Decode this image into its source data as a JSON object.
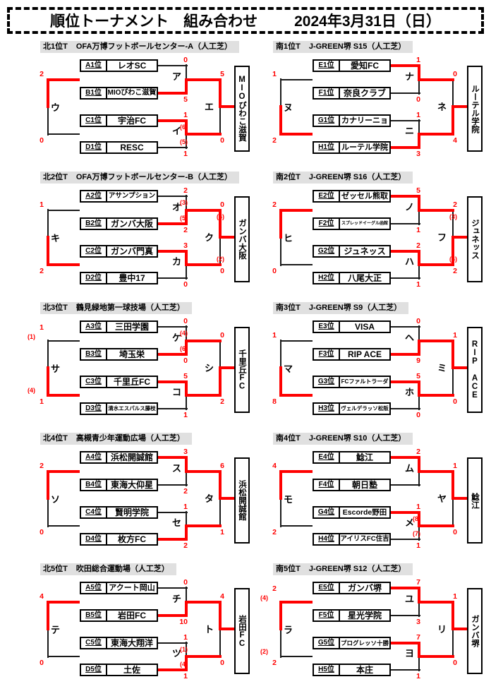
{
  "page": {
    "title": "順位トーナメント　組み合わせ",
    "date": "2024年3月31日（日）"
  },
  "colors": {
    "accent_red": "#ff0000",
    "line_black": "#1a1a1a",
    "header_bg": "#e0e0e0"
  },
  "brackets": [
    {
      "id": "north-1",
      "name": "北1位T",
      "venue": "OFA万博フットボールセンター-A（人工芝）",
      "teams": [
        {
          "seed": "A1位",
          "name": "レオSC"
        },
        {
          "seed": "B1位",
          "name": "MIOびわこ滋賀"
        },
        {
          "seed": "C1位",
          "name": "宇治FC"
        },
        {
          "seed": "D1位",
          "name": "RESC"
        }
      ],
      "matches": {
        "semi_top": {
          "label": "ア",
          "top_score": "0",
          "top_pk": "",
          "bottom_score": "5",
          "bottom_pk": "",
          "winner": "bottom"
        },
        "semi_bottom": {
          "label": "イ",
          "top_score": "1",
          "top_pk": "(6)",
          "bottom_score": "1",
          "bottom_pk": "(5)",
          "winner": "top"
        },
        "consolation": {
          "label": "ウ",
          "top_score": "2",
          "top_pk": "",
          "bottom_score": "0",
          "bottom_pk": "",
          "winner": "top"
        },
        "final": {
          "label": "エ",
          "top_score": "5",
          "top_pk": "",
          "bottom_score": "0",
          "bottom_pk": "",
          "winner": "top"
        }
      },
      "champion": "MIOびわこ滋賀"
    },
    {
      "id": "north-2",
      "name": "北2位T",
      "venue": "OFA万博フットボールセンター-B（人工芝）",
      "teams": [
        {
          "seed": "A2位",
          "name": "アサンプション"
        },
        {
          "seed": "B2位",
          "name": "ガンバ大阪"
        },
        {
          "seed": "C2位",
          "name": "ガンバ門真"
        },
        {
          "seed": "D2位",
          "name": "豊中17"
        }
      ],
      "matches": {
        "semi_top": {
          "label": "オ",
          "top_score": "2",
          "top_pk": "(3)",
          "bottom_score": "2",
          "bottom_pk": "(5)",
          "winner": "bottom"
        },
        "semi_bottom": {
          "label": "カ",
          "top_score": "3",
          "top_pk": "",
          "bottom_score": "0",
          "bottom_pk": "",
          "winner": "top"
        },
        "consolation": {
          "label": "キ",
          "top_score": "1",
          "top_pk": "",
          "bottom_score": "2",
          "bottom_pk": "",
          "winner": "bottom"
        },
        "final": {
          "label": "ク",
          "top_score": "0",
          "top_pk": "(4)",
          "bottom_score": "0",
          "bottom_pk": "(2)",
          "winner": "top"
        }
      },
      "champion": "ガンバ大阪"
    },
    {
      "id": "north-3",
      "name": "北3位T",
      "venue": "鶴見緑地第一球技場（人工芝）",
      "teams": [
        {
          "seed": "A3位",
          "name": "三田学園"
        },
        {
          "seed": "B3位",
          "name": "埼玉栄"
        },
        {
          "seed": "C3位",
          "name": "千里丘FC"
        },
        {
          "seed": "D3位",
          "name": "清水エスパルス藤枝"
        }
      ],
      "matches": {
        "semi_top": {
          "label": "ケ",
          "top_score": "0",
          "top_pk": "(4)",
          "bottom_score": "0",
          "bottom_pk": "(6)",
          "winner": "bottom"
        },
        "semi_bottom": {
          "label": "コ",
          "top_score": "5",
          "top_pk": "",
          "bottom_score": "1",
          "bottom_pk": "",
          "winner": "top"
        },
        "consolation": {
          "label": "サ",
          "top_score": "1",
          "top_pk": "(1)",
          "bottom_score": "1",
          "bottom_pk": "(4)",
          "winner": "bottom"
        },
        "final": {
          "label": "シ",
          "top_score": "0",
          "top_pk": "",
          "bottom_score": "2",
          "bottom_pk": "",
          "winner": "bottom"
        }
      },
      "champion": "千里丘FC"
    },
    {
      "id": "north-4",
      "name": "北4位T",
      "venue": "高槻青少年運動広場（人工芝）",
      "teams": [
        {
          "seed": "A4位",
          "name": "浜松開誠館"
        },
        {
          "seed": "B4位",
          "name": "東海大仰星"
        },
        {
          "seed": "C4位",
          "name": "賢明学院"
        },
        {
          "seed": "D4位",
          "name": "枚方FC"
        }
      ],
      "matches": {
        "semi_top": {
          "label": "ス",
          "top_score": "3",
          "top_pk": "",
          "bottom_score": "2",
          "bottom_pk": "",
          "winner": "top"
        },
        "semi_bottom": {
          "label": "セ",
          "top_score": "1",
          "top_pk": "",
          "bottom_score": "2",
          "bottom_pk": "",
          "winner": "bottom"
        },
        "consolation": {
          "label": "ソ",
          "top_score": "2",
          "top_pk": "",
          "bottom_score": "0",
          "bottom_pk": "",
          "winner": "top"
        },
        "final": {
          "label": "タ",
          "top_score": "6",
          "top_pk": "",
          "bottom_score": "1",
          "bottom_pk": "",
          "winner": "top"
        }
      },
      "champion": "浜松開誠館"
    },
    {
      "id": "north-5",
      "name": "北5位T",
      "venue": "吹田総合運動場（人工芝）",
      "teams": [
        {
          "seed": "A5位",
          "name": "アクート岡山"
        },
        {
          "seed": "B5位",
          "name": "岩田FC"
        },
        {
          "seed": "C5位",
          "name": "東海大翔洋"
        },
        {
          "seed": "D5位",
          "name": "土佐"
        }
      ],
      "matches": {
        "semi_top": {
          "label": "チ",
          "top_score": "0",
          "top_pk": "",
          "bottom_score": "10",
          "bottom_pk": "",
          "winner": "bottom"
        },
        "semi_bottom": {
          "label": "ツ",
          "top_score": "1",
          "top_pk": "(1)",
          "bottom_score": "1",
          "bottom_pk": "(4)",
          "winner": "bottom"
        },
        "consolation": {
          "label": "テ",
          "top_score": "4",
          "top_pk": "",
          "bottom_score": "0",
          "bottom_pk": "",
          "winner": "top"
        },
        "final": {
          "label": "ト",
          "top_score": "4",
          "top_pk": "",
          "bottom_score": "0",
          "bottom_pk": "",
          "winner": "top"
        }
      },
      "champion": "岩田FC"
    },
    {
      "id": "south-1",
      "name": "南1位T",
      "venue": "J-GREEN堺 S15（人工芝）",
      "teams": [
        {
          "seed": "E1位",
          "name": "愛知FC"
        },
        {
          "seed": "F1位",
          "name": "奈良クラブ"
        },
        {
          "seed": "G1位",
          "name": "カナリーニョ"
        },
        {
          "seed": "H1位",
          "name": "ルーテル学院"
        }
      ],
      "matches": {
        "semi_top": {
          "label": "ナ",
          "top_score": "1",
          "top_pk": "",
          "bottom_score": "0",
          "bottom_pk": "",
          "winner": "top"
        },
        "semi_bottom": {
          "label": "ニ",
          "top_score": "1",
          "top_pk": "",
          "bottom_score": "3",
          "bottom_pk": "",
          "winner": "bottom"
        },
        "consolation": {
          "label": "ヌ",
          "top_score": "1",
          "top_pk": "",
          "bottom_score": "2",
          "bottom_pk": "",
          "winner": "bottom"
        },
        "final": {
          "label": "ネ",
          "top_score": "0",
          "top_pk": "",
          "bottom_score": "4",
          "bottom_pk": "",
          "winner": "bottom"
        }
      },
      "champion": "ルーテル学院"
    },
    {
      "id": "south-2",
      "name": "南2位T",
      "venue": "J-GREEN堺 S16（人工芝）",
      "teams": [
        {
          "seed": "E2位",
          "name": "ゼッセル熊取"
        },
        {
          "seed": "F2位",
          "name": "スプレッドイーグル函館"
        },
        {
          "seed": "G2位",
          "name": "ジュネッス"
        },
        {
          "seed": "H2位",
          "name": "八尾大正"
        }
      ],
      "matches": {
        "semi_top": {
          "label": "ノ",
          "top_score": "5",
          "top_pk": "",
          "bottom_score": "1",
          "bottom_pk": "",
          "winner": "top"
        },
        "semi_bottom": {
          "label": "ハ",
          "top_score": "2",
          "top_pk": "",
          "bottom_score": "1",
          "bottom_pk": "",
          "winner": "top"
        },
        "consolation": {
          "label": "ヒ",
          "top_score": "2",
          "top_pk": "",
          "bottom_score": "0",
          "bottom_pk": "",
          "winner": "top"
        },
        "final": {
          "label": "フ",
          "top_score": "2",
          "top_pk": "(3)",
          "bottom_score": "2",
          "bottom_pk": "(4)",
          "winner": "bottom"
        }
      },
      "champion": "ジュネッス"
    },
    {
      "id": "south-3",
      "name": "南3位T",
      "venue": "J-GREEN堺 S9（人工芝）",
      "teams": [
        {
          "seed": "E3位",
          "name": "VISA"
        },
        {
          "seed": "F3位",
          "name": "RIP ACE"
        },
        {
          "seed": "G3位",
          "name": "FCファルトラーダ"
        },
        {
          "seed": "H3位",
          "name": "ヴェルデラッソ松阪"
        }
      ],
      "matches": {
        "semi_top": {
          "label": "ヘ",
          "top_score": "0",
          "top_pk": "",
          "bottom_score": "9",
          "bottom_pk": "",
          "winner": "bottom"
        },
        "semi_bottom": {
          "label": "ホ",
          "top_score": "5",
          "top_pk": "",
          "bottom_score": "0",
          "bottom_pk": "",
          "winner": "top"
        },
        "consolation": {
          "label": "マ",
          "top_score": "1",
          "top_pk": "",
          "bottom_score": "8",
          "bottom_pk": "",
          "winner": "bottom"
        },
        "final": {
          "label": "ミ",
          "top_score": "1",
          "top_pk": "",
          "bottom_score": "0",
          "bottom_pk": "",
          "winner": "top"
        }
      },
      "champion": "RIP ACE"
    },
    {
      "id": "south-4",
      "name": "南4位T",
      "venue": "J-GREEN堺 S10（人工芝）",
      "teams": [
        {
          "seed": "E4位",
          "name": "鯰江"
        },
        {
          "seed": "F4位",
          "name": "朝日塾"
        },
        {
          "seed": "G4位",
          "name": "Escorde野田"
        },
        {
          "seed": "H4位",
          "name": "アイリスFC住吉"
        }
      ],
      "matches": {
        "semi_top": {
          "label": "ム",
          "top_score": "2",
          "top_pk": "",
          "bottom_score": "",
          "bottom_pk": "",
          "winner": "top"
        },
        "semi_bottom": {
          "label": "メ",
          "top_score": "1",
          "top_pk": "(8)",
          "bottom_score": "1",
          "bottom_pk": "(7)",
          "winner": "top"
        },
        "consolation": {
          "label": "モ",
          "top_score": "4",
          "top_pk": "",
          "bottom_score": "2",
          "bottom_pk": "",
          "winner": "top"
        },
        "final": {
          "label": "ヤ",
          "top_score": "1",
          "top_pk": "",
          "bottom_score": "0",
          "bottom_pk": "",
          "winner": "top"
        }
      },
      "champion": "鯰江"
    },
    {
      "id": "south-5",
      "name": "南5位T",
      "venue": "J-GREEN堺 S12（人工芝）",
      "teams": [
        {
          "seed": "E5位",
          "name": "ガンバ堺"
        },
        {
          "seed": "F5位",
          "name": "星光学院"
        },
        {
          "seed": "G5位",
          "name": "プログレッソ十勝"
        },
        {
          "seed": "H5位",
          "name": "本庄"
        }
      ],
      "matches": {
        "semi_top": {
          "label": "ユ",
          "top_score": "7",
          "top_pk": "",
          "bottom_score": "3",
          "bottom_pk": "",
          "winner": "top"
        },
        "semi_bottom": {
          "label": "ヨ",
          "top_score": "7",
          "top_pk": "",
          "bottom_score": "1",
          "bottom_pk": "",
          "winner": "top"
        },
        "consolation": {
          "label": "ラ",
          "top_score": "2",
          "top_pk": "(4)",
          "bottom_score": "2",
          "bottom_pk": "(2)",
          "winner": "top"
        },
        "final": {
          "label": "リ",
          "top_score": "1",
          "top_pk": "",
          "bottom_score": "0",
          "bottom_pk": "",
          "winner": "top"
        }
      },
      "champion": "ガンバ堺"
    }
  ]
}
